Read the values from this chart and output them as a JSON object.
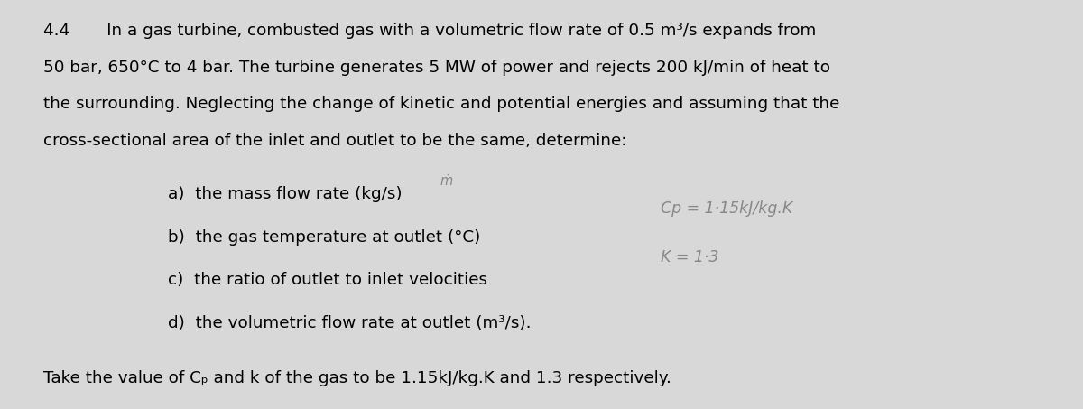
{
  "bg_color": "#d8d8d8",
  "fig_width": 12.0,
  "fig_height": 4.53,
  "dpi": 100,
  "paragraph_lines": [
    {
      "xf": 0.04,
      "yf": 0.945,
      "text": "4.4       In a gas turbine, combusted gas with a volumetric flow rate of 0.5 m³/s expands from",
      "fontsize": 13.2
    },
    {
      "xf": 0.04,
      "yf": 0.855,
      "text": "50 bar, 650°C to 4 bar. The turbine generates 5 MW of power and rejects 200 kJ/min of heat to",
      "fontsize": 13.2
    },
    {
      "xf": 0.04,
      "yf": 0.765,
      "text": "the surrounding. Neglecting the change of kinetic and potential energies and assuming that the",
      "fontsize": 13.2
    },
    {
      "xf": 0.04,
      "yf": 0.675,
      "text": "cross-sectional area of the inlet and outlet to be the same, determine:",
      "fontsize": 13.2
    }
  ],
  "list_items": [
    {
      "xf": 0.155,
      "yf": 0.545,
      "text": "a)  the mass flow rate (kg/s)",
      "fontsize": 13.2
    },
    {
      "xf": 0.155,
      "yf": 0.44,
      "text": "b)  the gas temperature at outlet (°C)",
      "fontsize": 13.2
    },
    {
      "xf": 0.155,
      "yf": 0.335,
      "text": "c)  the ratio of outlet to inlet velocities",
      "fontsize": 13.2
    },
    {
      "xf": 0.155,
      "yf": 0.23,
      "text": "d)  the volumetric flow rate at outlet (m³/s).",
      "fontsize": 13.2
    }
  ],
  "handwritten_cp": {
    "xf": 0.61,
    "yf": 0.51,
    "text": "Cp = 1·15kJ/kg.K",
    "fontsize": 12.5,
    "color": "#888888"
  },
  "handwritten_k": {
    "xf": 0.61,
    "yf": 0.39,
    "text": "K = 1·3",
    "fontsize": 12.5,
    "color": "#888888"
  },
  "handwritten_mdot": {
    "xf": 0.406,
    "yf": 0.575,
    "text": "ṁ",
    "fontsize": 10.5,
    "color": "#888888"
  },
  "footer": {
    "xf": 0.04,
    "yf": 0.055,
    "text": "Take the value of Cₚ and k of the gas to be 1.15kJ/kg.K and 1.3 respectively.",
    "fontsize": 13.2
  }
}
